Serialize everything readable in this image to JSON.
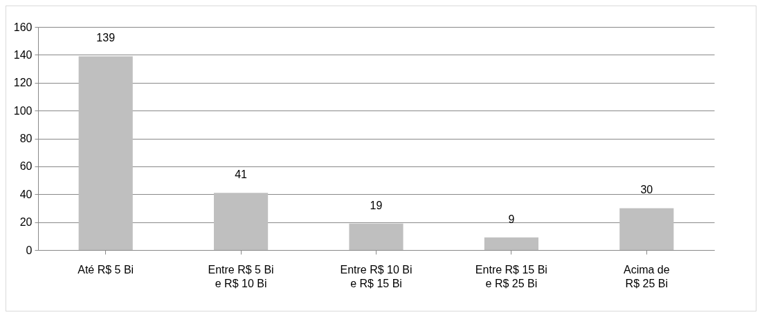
{
  "chart_data": {
    "type": "bar",
    "categories": [
      "Até R$ 5 Bi",
      "Entre R$ 5 Bi\ne R$ 10 Bi",
      "Entre R$ 10 Bi\ne R$ 15 Bi",
      "Entre R$ 15 Bi\ne R$ 25 Bi",
      "Acima de\nR$ 25 Bi"
    ],
    "values": [
      139,
      41,
      19,
      9,
      30
    ],
    "color": "#bfbfbf",
    "ylim": [
      0,
      160
    ],
    "yticks": [
      0,
      20,
      40,
      60,
      80,
      100,
      120,
      140,
      160
    ],
    "grid": "y",
    "data_labels": true
  }
}
